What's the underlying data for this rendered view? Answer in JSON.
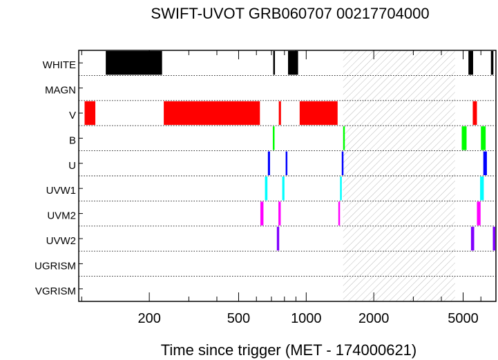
{
  "chart_data": {
    "type": "bar",
    "orientation": "horizontal-timeline",
    "title": "SWIFT-UVOT GRB060707 00217704000",
    "xlabel": "Time since trigger (MET - 174000621)",
    "x_scale": "log",
    "xlim": [
      97,
      7000
    ],
    "x_ticks": [
      {
        "value": 200,
        "label": "200"
      },
      {
        "value": 500,
        "label": "500"
      },
      {
        "value": 1000,
        "label": "1000"
      },
      {
        "value": 2000,
        "label": "2000"
      },
      {
        "value": 5000,
        "label": "5000"
      }
    ],
    "rows": [
      "WHITE",
      "MAGN",
      "V",
      "B",
      "U",
      "UVW1",
      "UVM2",
      "UVW2",
      "UGRISM",
      "VGRISM"
    ],
    "colors": {
      "WHITE": "#000000",
      "V": "#ff0000",
      "B": "#00ff00",
      "U": "#0000ff",
      "UVW1": "#00ffff",
      "UVM2": "#ff00ff",
      "UVW2": "#8000ff"
    },
    "hatched_gap": {
      "start": 1460,
      "end": 4600
    },
    "exposures": {
      "WHITE": [
        [
          128,
          228
        ],
        [
          713,
          722
        ],
        [
          830,
          920
        ],
        [
          5280,
          5540
        ],
        [
          6650,
          6820
        ]
      ],
      "MAGN": [],
      "V": [
        [
          103,
          115
        ],
        [
          232,
          622
        ],
        [
          755,
          772
        ],
        [
          935,
          1380
        ],
        [
          5520,
          5760
        ]
      ],
      "B": [
        [
          710,
          720
        ],
        [
          1460,
          1470
        ],
        [
          4930,
          5180
        ],
        [
          6000,
          6300
        ]
      ],
      "U": [
        [
          675,
          690
        ],
        [
          810,
          822
        ],
        [
          1440,
          1452
        ],
        [
          6150,
          6380
        ]
      ],
      "UVW1": [
        [
          655,
          672
        ],
        [
          782,
          800
        ],
        [
          1415,
          1430
        ],
        [
          5950,
          6180
        ]
      ],
      "UVM2": [
        [
          625,
          645
        ],
        [
          752,
          770
        ],
        [
          1390,
          1402
        ],
        [
          5760,
          5980
        ]
      ],
      "UVW2": [
        [
          740,
          758
        ],
        [
          5420,
          5600
        ],
        [
          6780,
          6950
        ]
      ],
      "UGRISM": [],
      "VGRISM": []
    }
  }
}
